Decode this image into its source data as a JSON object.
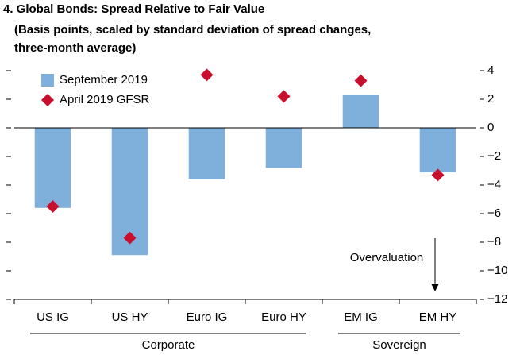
{
  "chart_data": {
    "type": "bar",
    "title": "4. Global Bonds: Spread Relative to Fair Value",
    "subtitle": [
      "(Basis points, scaled by standard deviation of spread changes,",
      "three-month average)"
    ],
    "categories": [
      "US IG",
      "US HY",
      "Euro IG",
      "Euro HY",
      "EM IG",
      "EM HY"
    ],
    "groups": [
      {
        "name": "Corporate",
        "span": 4
      },
      {
        "name": "Sovereign",
        "span": 2
      }
    ],
    "series": [
      {
        "name": "September 2019",
        "color": "#7fb0dc",
        "mark": "bar",
        "values": [
          -5.6,
          -8.9,
          -3.6,
          -2.8,
          2.3,
          -3.1
        ]
      },
      {
        "name": "April 2019 GFSR",
        "color": "#c8102e",
        "mark": "diamond",
        "values": [
          -5.5,
          -7.7,
          3.7,
          2.2,
          3.3,
          -3.3
        ]
      }
    ],
    "ylim": [
      -12,
      4
    ],
    "yticks": [
      4,
      2,
      0,
      {
        "value": -2,
        "label": "−2"
      },
      {
        "value": -4,
        "label": "−4"
      },
      {
        "value": -6,
        "label": "−6"
      },
      {
        "value": -8,
        "label": "−8"
      },
      {
        "value": -10,
        "label": "−10"
      },
      {
        "value": -12,
        "label": "−12"
      }
    ],
    "annotation": "Overvaluation",
    "legend": "top-left"
  }
}
